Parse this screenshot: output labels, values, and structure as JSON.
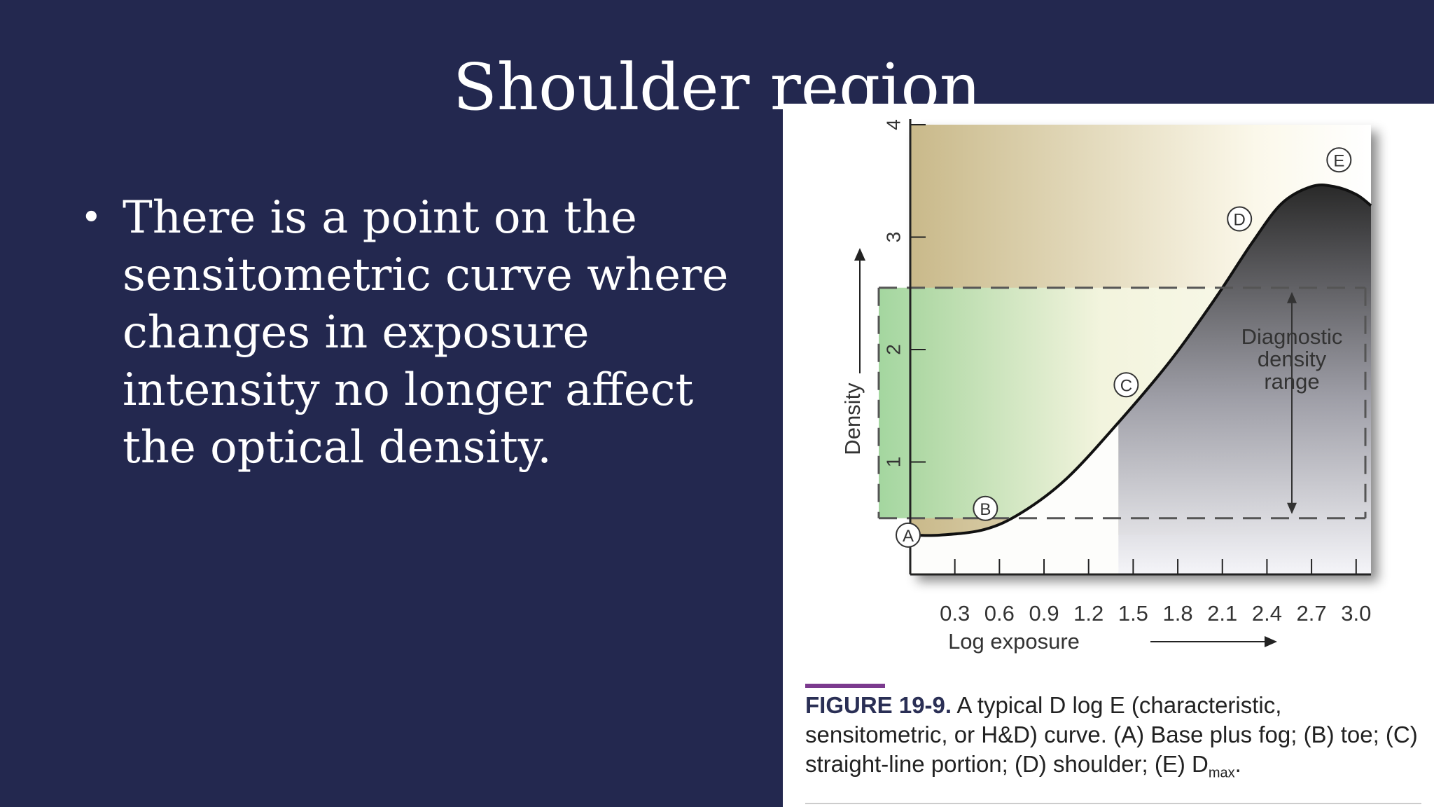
{
  "slide": {
    "title": "Shoulder region",
    "bullets": [
      "There is a point on the sensitometric curve where changes in exposure intensity no longer affect the optical density."
    ],
    "bullet_marker": "•"
  },
  "figure": {
    "caption_label": "FIGURE 19-9.",
    "caption_text": "A typical D log E (characteristic, sensitometric, or H&D) curve. (A) Base plus fog; (B) toe; (C) straight-line portion; (D) shoulder; (E) D",
    "caption_sub": "max",
    "caption_end": ".",
    "annotation": [
      "Diagnostic",
      "density",
      "range"
    ],
    "point_labels": [
      "A",
      "B",
      "C",
      "D",
      "E"
    ]
  },
  "colors": {
    "background": "#23284f",
    "text": "#ffffff",
    "caption_rule": "#7b3a8e",
    "diagnostic_band": "#9fd49a",
    "upper_band": "#c9b98a"
  },
  "chart_data": {
    "type": "line",
    "xlabel": "Log  exposure",
    "ylabel": "Density",
    "x_ticks": [
      "0.3",
      "0.6",
      "0.9",
      "1.2",
      "1.5",
      "1.8",
      "2.1",
      "2.4",
      "2.7",
      "3.0"
    ],
    "y_ticks": [
      "1",
      "2",
      "3",
      "4"
    ],
    "xlim": [
      0,
      3.1
    ],
    "ylim": [
      0,
      4
    ],
    "diagnostic_range": [
      0.5,
      2.55
    ],
    "x": [
      0.0,
      0.2,
      0.5,
      0.75,
      1.05,
      1.4,
      1.75,
      2.05,
      2.3,
      2.5,
      2.7,
      2.85,
      3.0,
      3.1
    ],
    "values": [
      0.35,
      0.35,
      0.4,
      0.55,
      0.85,
      1.35,
      1.9,
      2.45,
      2.95,
      3.3,
      3.45,
      3.45,
      3.38,
      3.28
    ],
    "points": [
      {
        "label": "A",
        "x": 0.0,
        "y": 0.35
      },
      {
        "label": "B",
        "x": 0.6,
        "y": 0.45
      },
      {
        "label": "C",
        "x": 1.5,
        "y": 1.5
      },
      {
        "label": "D",
        "x": 2.3,
        "y": 2.95
      },
      {
        "label": "E",
        "x": 2.8,
        "y": 3.45
      }
    ]
  }
}
